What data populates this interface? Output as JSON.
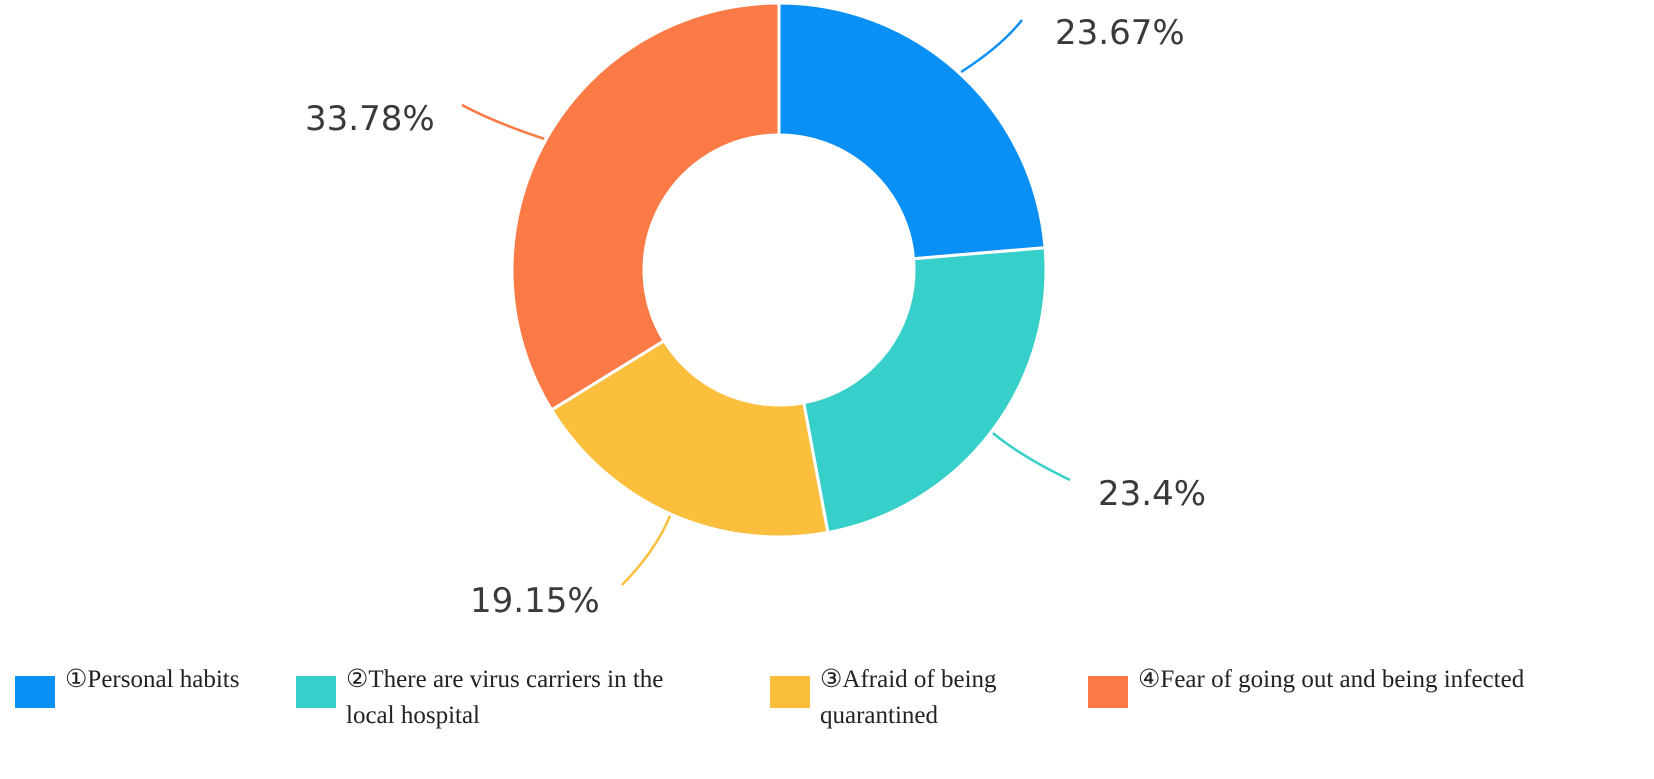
{
  "chart_data": {
    "type": "pie",
    "donut": true,
    "categories": [
      "①Personal habits",
      "②There are virus carriers in the local hospital",
      "③Afraid of being quarantined",
      "④Fear of going out and being infected"
    ],
    "values": [
      23.67,
      23.4,
      19.15,
      33.78
    ],
    "value_labels": [
      "23.67%",
      "23.4%",
      "19.15%",
      "33.78%"
    ],
    "colors": [
      "#0a8ff5",
      "#36cfc9",
      "#fbbf3d",
      "#fb7a45"
    ],
    "legend_position": "bottom"
  },
  "legend": {
    "items": [
      {
        "lines": [
          "①Personal habits"
        ]
      },
      {
        "lines": [
          "②There are virus carriers in the",
          "local hospital"
        ]
      },
      {
        "lines": [
          "③Afraid of being",
          "quarantined"
        ]
      },
      {
        "lines": [
          "④Fear of going out and being infected"
        ]
      }
    ]
  }
}
